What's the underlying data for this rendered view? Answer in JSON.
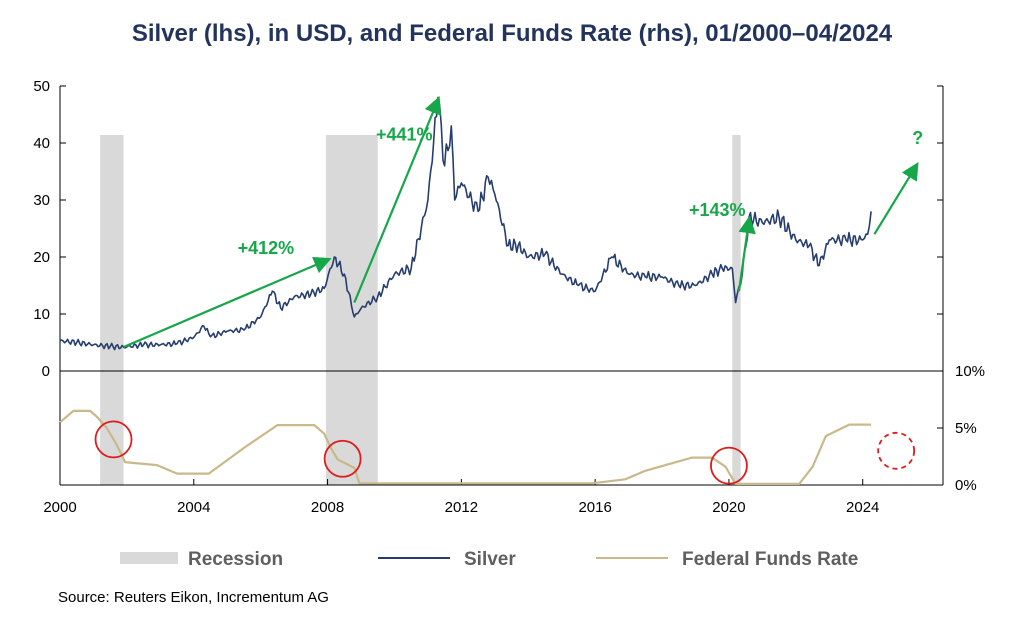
{
  "chart_data": {
    "type": "line",
    "title": "Silver (lhs), in USD, and Federal Funds Rate (rhs), 01/2000–04/2024",
    "source": "Source: Reuters Eikon, Incrementum AG",
    "x_ticks": [
      "2000",
      "2004",
      "2008",
      "2012",
      "2016",
      "2020",
      "2024"
    ],
    "xlim": [
      2000,
      2026.4
    ],
    "silver_axis": {
      "label": "lhs",
      "ylim": [
        0,
        50
      ],
      "ticks": [
        "0",
        "10",
        "20",
        "30",
        "40",
        "50"
      ]
    },
    "ffr_axis": {
      "label": "rhs",
      "ylim": [
        0,
        10
      ],
      "ticks": [
        "0%",
        "5%",
        "10%"
      ]
    },
    "recessions": [
      {
        "name": "Recession",
        "start": 2001.2,
        "end": 2001.9
      },
      {
        "name": "Recession",
        "start": 2007.95,
        "end": 2009.5
      },
      {
        "name": "Recession",
        "start": 2020.1,
        "end": 2020.35
      }
    ],
    "series": [
      {
        "name": "Silver",
        "color": "#263d6e",
        "points": [
          [
            2000.0,
            5.3
          ],
          [
            2000.5,
            5.0
          ],
          [
            2001.0,
            4.6
          ],
          [
            2001.5,
            4.3
          ],
          [
            2001.9,
            4.2
          ],
          [
            2002.5,
            4.6
          ],
          [
            2003.0,
            4.6
          ],
          [
            2003.5,
            4.8
          ],
          [
            2004.0,
            5.9
          ],
          [
            2004.3,
            7.9
          ],
          [
            2004.5,
            6.0
          ],
          [
            2005.0,
            7.0
          ],
          [
            2005.5,
            7.2
          ],
          [
            2006.0,
            9.5
          ],
          [
            2006.35,
            14.0
          ],
          [
            2006.6,
            11.0
          ],
          [
            2007.0,
            13.0
          ],
          [
            2007.5,
            13.5
          ],
          [
            2007.9,
            14.5
          ],
          [
            2008.2,
            20.0
          ],
          [
            2008.5,
            17.0
          ],
          [
            2008.8,
            9.5
          ],
          [
            2009.0,
            11.0
          ],
          [
            2009.5,
            13.0
          ],
          [
            2010.0,
            17.0
          ],
          [
            2010.5,
            18.0
          ],
          [
            2010.8,
            25.0
          ],
          [
            2011.0,
            30.0
          ],
          [
            2011.3,
            48.0
          ],
          [
            2011.5,
            36.0
          ],
          [
            2011.7,
            43.0
          ],
          [
            2011.8,
            30.0
          ],
          [
            2012.0,
            33.0
          ],
          [
            2012.5,
            28.0
          ],
          [
            2012.8,
            34.0
          ],
          [
            2013.0,
            31.0
          ],
          [
            2013.4,
            22.0
          ],
          [
            2013.7,
            22.0
          ],
          [
            2014.0,
            20.0
          ],
          [
            2014.5,
            20.5
          ],
          [
            2015.0,
            17.0
          ],
          [
            2015.5,
            15.0
          ],
          [
            2016.0,
            14.0
          ],
          [
            2016.5,
            20.0
          ],
          [
            2017.0,
            17.0
          ],
          [
            2017.5,
            16.5
          ],
          [
            2018.0,
            16.5
          ],
          [
            2018.5,
            15.0
          ],
          [
            2019.0,
            15.0
          ],
          [
            2019.5,
            17.0
          ],
          [
            2019.8,
            18.0
          ],
          [
            2020.1,
            18.0
          ],
          [
            2020.2,
            12.0
          ],
          [
            2020.4,
            17.0
          ],
          [
            2020.6,
            27.0
          ],
          [
            2021.0,
            26.0
          ],
          [
            2021.5,
            27.0
          ],
          [
            2022.0,
            23.0
          ],
          [
            2022.4,
            22.0
          ],
          [
            2022.7,
            18.5
          ],
          [
            2023.0,
            23.0
          ],
          [
            2023.5,
            23.0
          ],
          [
            2024.0,
            23.0
          ],
          [
            2024.15,
            24.0
          ],
          [
            2024.25,
            28.0
          ]
        ]
      },
      {
        "name": "Federal Funds Rate",
        "color": "#c9b88a",
        "points": [
          [
            2000.0,
            5.5
          ],
          [
            2000.4,
            6.5
          ],
          [
            2000.9,
            6.5
          ],
          [
            2001.1,
            6.0
          ],
          [
            2001.4,
            5.0
          ],
          [
            2001.7,
            3.5
          ],
          [
            2001.95,
            2.0
          ],
          [
            2002.9,
            1.75
          ],
          [
            2003.5,
            1.0
          ],
          [
            2004.45,
            1.0
          ],
          [
            2005.5,
            3.25
          ],
          [
            2006.5,
            5.25
          ],
          [
            2007.6,
            5.25
          ],
          [
            2007.9,
            4.5
          ],
          [
            2008.1,
            3.25
          ],
          [
            2008.3,
            2.25
          ],
          [
            2008.8,
            1.5
          ],
          [
            2008.95,
            0.15
          ],
          [
            2015.9,
            0.15
          ],
          [
            2016.9,
            0.5
          ],
          [
            2017.5,
            1.25
          ],
          [
            2018.9,
            2.4
          ],
          [
            2019.5,
            2.4
          ],
          [
            2019.9,
            1.6
          ],
          [
            2020.2,
            0.1
          ],
          [
            2022.1,
            0.1
          ],
          [
            2022.5,
            1.6
          ],
          [
            2022.9,
            4.3
          ],
          [
            2023.6,
            5.3
          ],
          [
            2024.25,
            5.3
          ]
        ]
      }
    ],
    "annotations": [
      {
        "text": "+412%",
        "x": 2001.9,
        "y": 4.2,
        "x2": 2008.0,
        "y2": 19.5
      },
      {
        "text": "+441%",
        "x": 2008.8,
        "y": 12.0,
        "x2": 2011.3,
        "y2": 47.5
      },
      {
        "text": "+143%",
        "x": 2020.3,
        "y": 14.0,
        "x2": 2020.6,
        "y2": 26.5
      },
      {
        "text": "?",
        "x": 2024.35,
        "y": 24.0,
        "x2": 2025.6,
        "y2": 36.0
      }
    ],
    "rate_cut_markers": [
      {
        "x": 2001.6,
        "y": 4.0
      },
      {
        "x": 2008.45,
        "y": 2.3
      },
      {
        "x": 2020.0,
        "y": 1.7
      },
      {
        "x": 2025.0,
        "y": 3.0,
        "style": "dashed"
      }
    ],
    "legend": {
      "position": "bottom",
      "items": [
        {
          "label": "Recession",
          "kind": "band",
          "color": "#d9d9d9"
        },
        {
          "label": "Silver",
          "kind": "line",
          "color": "#263d6e"
        },
        {
          "label": "Federal Funds Rate",
          "kind": "line",
          "color": "#c9b88a"
        }
      ]
    },
    "colors": {
      "title": "#22345e",
      "annotation": "#17a74a",
      "marker": "#e01b1b",
      "recession": "#d9d9d9"
    }
  }
}
